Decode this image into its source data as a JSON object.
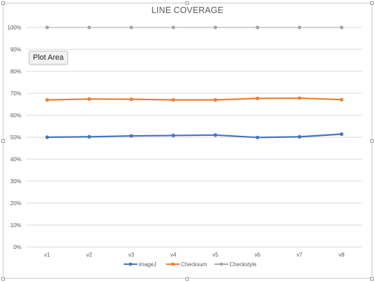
{
  "chart_data": {
    "type": "line",
    "title": "LINE COVERAGE",
    "xlabel": "",
    "ylabel": "",
    "categories": [
      "v1",
      "v2",
      "v3",
      "v4",
      "v5",
      "v6",
      "v7",
      "v8"
    ],
    "ylim": [
      0,
      100
    ],
    "yticks": [
      "0%",
      "10%",
      "20%",
      "30%",
      "40%",
      "50%",
      "60%",
      "70%",
      "80%",
      "90%",
      "100%"
    ],
    "grid": true,
    "legend_position": "bottom",
    "series": [
      {
        "name": "imageJ",
        "color": "#4472C4",
        "values": [
          50.0,
          50.2,
          50.6,
          50.8,
          51.0,
          49.9,
          50.2,
          51.4
        ]
      },
      {
        "name": "Checksum",
        "color": "#ED7D31",
        "values": [
          67.0,
          67.4,
          67.3,
          67.0,
          67.0,
          67.7,
          67.8,
          67.1
        ]
      },
      {
        "name": "Checkstyle",
        "color": "#A5A5A5",
        "values": [
          100,
          100,
          100,
          100,
          100,
          100,
          100,
          100
        ]
      }
    ]
  },
  "tooltip": {
    "text": "Plot Area"
  }
}
